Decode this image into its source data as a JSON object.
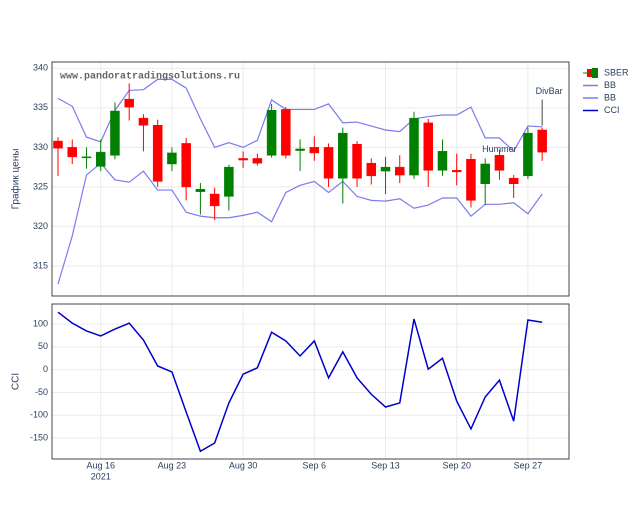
{
  "chart_data": [
    {
      "type": "candlestick",
      "y_label": "График цены",
      "watermark": "www.pandoratradingsolutions.ru",
      "x": [
        "2021-08-11",
        "2021-08-12",
        "2021-08-13",
        "2021-08-16",
        "2021-08-17",
        "2021-08-18",
        "2021-08-19",
        "2021-08-20",
        "2021-08-23",
        "2021-08-24",
        "2021-08-25",
        "2021-08-26",
        "2021-08-27",
        "2021-08-30",
        "2021-08-31",
        "2021-09-01",
        "2021-09-02",
        "2021-09-03",
        "2021-09-06",
        "2021-09-07",
        "2021-09-08",
        "2021-09-09",
        "2021-09-10",
        "2021-09-13",
        "2021-09-14",
        "2021-09-15",
        "2021-09-16",
        "2021-09-17",
        "2021-09-20",
        "2021-09-21",
        "2021-09-22",
        "2021-09-23",
        "2021-09-24",
        "2021-09-27",
        "2021-09-28"
      ],
      "ylim": [
        311.2,
        340.8
      ],
      "yticks": [
        315,
        320,
        325,
        330,
        335,
        340
      ],
      "grid": true,
      "series": [
        {
          "name": "SBER",
          "type": "candlestick",
          "increasing_color": "#008000",
          "decreasing_color": "#ff0000",
          "open": [
            330.8,
            330.0,
            328.7,
            327.6,
            329.0,
            336.1,
            333.7,
            332.8,
            327.9,
            330.5,
            324.4,
            324.1,
            323.8,
            328.6,
            328.6,
            329.0,
            334.8,
            329.6,
            330.0,
            330.0,
            326.1,
            330.4,
            328.0,
            327.0,
            327.5,
            326.5,
            333.1,
            327.1,
            327.1,
            328.5,
            325.4,
            329.0,
            326.1,
            326.4,
            332.2
          ],
          "high": [
            331.3,
            331.0,
            330.0,
            331.0,
            335.7,
            338.1,
            334.2,
            333.5,
            330.0,
            331.2,
            325.5,
            324.9,
            327.8,
            329.5,
            329.2,
            335.5,
            335.1,
            331.0,
            331.4,
            330.5,
            332.5,
            330.8,
            328.6,
            328.8,
            329.0,
            334.5,
            333.6,
            331.0,
            329.2,
            329.2,
            328.6,
            329.7,
            326.5,
            332.5,
            332.5
          ],
          "low": [
            326.4,
            327.9,
            327.3,
            327.0,
            328.5,
            333.4,
            329.5,
            325.0,
            327.0,
            323.3,
            321.5,
            320.8,
            322.0,
            327.4,
            327.7,
            328.7,
            328.6,
            327.0,
            328.3,
            325.0,
            322.9,
            325.0,
            325.3,
            324.1,
            325.5,
            326.0,
            325.0,
            326.4,
            325.2,
            322.4,
            322.7,
            325.9,
            323.6,
            326.0,
            328.3
          ],
          "close": [
            329.9,
            328.8,
            328.8,
            329.4,
            334.6,
            335.1,
            332.8,
            325.7,
            329.3,
            325.0,
            324.7,
            322.6,
            327.5,
            328.4,
            328.0,
            334.7,
            329.0,
            329.8,
            329.3,
            326.1,
            331.8,
            326.1,
            326.4,
            327.5,
            326.5,
            333.7,
            327.1,
            329.5,
            326.9,
            323.3,
            327.9,
            327.1,
            325.4,
            331.8,
            329.4
          ]
        },
        {
          "name": "BB",
          "type": "line",
          "color": "#7b7bef",
          "values": [
            336.2,
            335.2,
            331.3,
            330.7,
            334.7,
            337.2,
            337.3,
            338.6,
            338.6,
            337.5,
            333.6,
            330.0,
            330.6,
            330.0,
            330.9,
            336.0,
            334.8,
            334.8,
            334.8,
            335.5,
            333.1,
            333.2,
            332.7,
            332.2,
            332.0,
            333.6,
            333.9,
            334.1,
            334.1,
            335.1,
            331.2,
            331.2,
            329.5,
            332.7,
            332.6
          ]
        },
        {
          "name": "BB",
          "type": "line",
          "color": "#7b7bef",
          "values": [
            312.7,
            318.8,
            326.5,
            328.0,
            325.9,
            325.6,
            327.0,
            324.6,
            324.6,
            321.8,
            321.3,
            321.1,
            321.1,
            321.4,
            321.8,
            320.6,
            324.3,
            325.2,
            325.7,
            324.3,
            325.7,
            323.8,
            323.3,
            323.2,
            323.5,
            322.3,
            322.7,
            323.6,
            323.6,
            321.3,
            322.8,
            322.8,
            323.0,
            321.6,
            324.1
          ]
        }
      ],
      "annotations": [
        {
          "text": "Hummer",
          "x": "2021-09-23"
        },
        {
          "text": "DivBar",
          "x": "2021-09-28"
        }
      ]
    },
    {
      "type": "line",
      "y_label": "CCI",
      "ylim": [
        -196,
        144
      ],
      "yticks": [
        -150,
        -100,
        -50,
        0,
        50,
        100
      ],
      "grid": true,
      "xticks": [
        {
          "value": "2021-08-16",
          "label": "Aug 16"
        },
        {
          "value": "2021-08-23",
          "label": "Aug 23"
        },
        {
          "value": "2021-08-30",
          "label": "Aug 30"
        },
        {
          "value": "2021-09-06",
          "label": "Sep 6"
        },
        {
          "value": "2021-09-13",
          "label": "Sep 13"
        },
        {
          "value": "2021-09-20",
          "label": "Sep 20"
        },
        {
          "value": "2021-09-27",
          "label": "Sep 27"
        }
      ],
      "x_year": "2021",
      "series": [
        {
          "name": "CCI",
          "color": "#0000cc",
          "values": [
            126,
            102,
            85,
            74,
            89,
            102,
            65,
            8,
            -5,
            -93,
            -179,
            -161,
            -73,
            -10,
            4,
            82,
            63,
            30,
            63,
            -18,
            39,
            -18,
            -54,
            -82,
            -73,
            111,
            1,
            25,
            -69,
            -130,
            -60,
            -23,
            -113,
            109,
            104
          ]
        }
      ]
    }
  ]
}
